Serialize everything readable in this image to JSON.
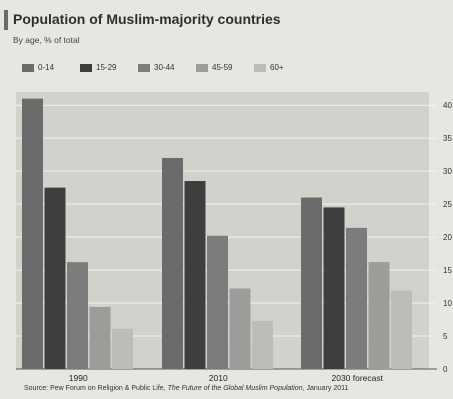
{
  "chart_data": {
    "type": "bar",
    "title": "Population of Muslim-majority countries",
    "subtitle": "By age, % of total",
    "categories": [
      "1990",
      "2010",
      "2030 forecast"
    ],
    "series": [
      {
        "name": "0-14",
        "values": [
          41,
          32,
          26
        ],
        "color": "#6b6b6b"
      },
      {
        "name": "15-29",
        "values": [
          27.5,
          28.5,
          24.5
        ],
        "color": "#3e3e3e"
      },
      {
        "name": "30-44",
        "values": [
          16.2,
          20.2,
          21.4
        ],
        "color": "#7c7c7c"
      },
      {
        "name": "45-59",
        "values": [
          9.4,
          12.2,
          16.2
        ],
        "color": "#9c9c9a"
      },
      {
        "name": "60+",
        "values": [
          6.1,
          7.3,
          11.9
        ],
        "color": "#bdbcb8"
      }
    ],
    "yticks": [
      "0",
      "5",
      "10",
      "15",
      "20",
      "25",
      "30",
      "35",
      "40"
    ],
    "ylim": [
      0,
      42
    ],
    "grid": true,
    "legend_position": "top-left",
    "source_prefix": "Source: Pew Forum on Religion & Public Life, ",
    "source_title": "The Future of the Global Muslim Population",
    "source_suffix": ", January 2011"
  }
}
